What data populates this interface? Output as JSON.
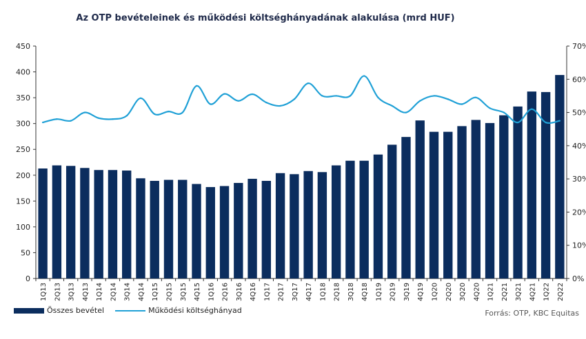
{
  "title": "Az OTP bevételeinek  és működési költséghányadának alakulása (mrd HUF)",
  "source": "Forrás: OTP, KBC Equitas",
  "colors": {
    "bars": "#0b2d5e",
    "line": "#1fa0d6",
    "axis": "#333333"
  },
  "chart_data": {
    "type": "bar",
    "title": "Az OTP bevételeinek  és működési költséghányadának alakulása (mrd HUF)",
    "categories": [
      "1Q13",
      "2Q13",
      "3Q13",
      "4Q13",
      "1Q14",
      "2Q14",
      "3Q14",
      "4Q14",
      "1Q15",
      "2Q15",
      "3Q15",
      "4Q15",
      "1Q16",
      "2Q16",
      "3Q16",
      "4Q16",
      "1Q17",
      "2Q17",
      "3Q17",
      "4Q17",
      "1Q18",
      "2Q18",
      "3Q18",
      "4Q18",
      "1Q19",
      "2Q19",
      "3Q19",
      "4Q19",
      "1Q20",
      "2Q20",
      "3Q20",
      "4Q20",
      "1Q21",
      "2Q21",
      "3Q21",
      "4Q21",
      "1Q22",
      "2Q22"
    ],
    "series": [
      {
        "name": "Összes bevétel",
        "type": "bar",
        "axis": "left",
        "values": [
          213,
          219,
          218,
          214,
          210,
          210,
          209,
          194,
          189,
          191,
          191,
          183,
          177,
          179,
          185,
          193,
          189,
          204,
          202,
          208,
          206,
          219,
          228,
          228,
          240,
          259,
          274,
          306,
          284,
          284,
          295,
          307,
          301,
          316,
          333,
          362,
          361,
          394
        ]
      },
      {
        "name": "Működési költséghányad",
        "type": "line",
        "axis": "right",
        "values": [
          0.47,
          0.48,
          0.475,
          0.5,
          0.483,
          0.48,
          0.49,
          0.543,
          0.495,
          0.503,
          0.5,
          0.58,
          0.525,
          0.556,
          0.535,
          0.555,
          0.53,
          0.52,
          0.54,
          0.588,
          0.55,
          0.55,
          0.55,
          0.61,
          0.545,
          0.52,
          0.5,
          0.535,
          0.55,
          0.54,
          0.525,
          0.545,
          0.513,
          0.5,
          0.47,
          0.51,
          0.47,
          0.475
        ]
      }
    ],
    "y_left": {
      "min": 0,
      "max": 450,
      "ticks": [
        0,
        50,
        100,
        150,
        200,
        250,
        300,
        350,
        400,
        450
      ]
    },
    "y_right": {
      "min": 0,
      "max": 0.7,
      "ticks": [
        "0%",
        "10%",
        "20%",
        "30%",
        "40%",
        "50%",
        "60%",
        "70%"
      ]
    },
    "legend": {
      "position": "bottom-left"
    },
    "grid": false
  }
}
